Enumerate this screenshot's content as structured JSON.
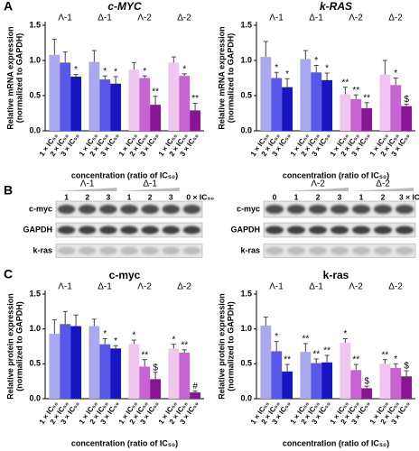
{
  "panel_labels": [
    "A",
    "B",
    "C"
  ],
  "chart_data": [
    {
      "type": "bar",
      "title": "c-MYC",
      "title_italic": true,
      "ylabel": [
        "Relative mRNA expression",
        "(normalized to GAPDH)"
      ],
      "xlabel": "concentration (ratio of IC₅₀)",
      "groups": [
        "Λ-1",
        "Δ-1",
        "Λ-2",
        "Δ-2"
      ],
      "categories": [
        "1 × IC₅₀",
        "2 × IC₅₀",
        "3 × IC₅₀",
        "1 × IC₅₀",
        "2 × IC₅₀",
        "3 × IC₅₀",
        "1 × IC₅₀",
        "2 × IC₅₀",
        "3 × IC₅₀",
        "1 × IC₅₀",
        "2 × IC₅₀",
        "3 × IC₅₀"
      ],
      "values": [
        1.08,
        0.97,
        0.77,
        0.98,
        0.73,
        0.67,
        0.87,
        0.75,
        0.37,
        0.97,
        0.78,
        0.29
      ],
      "errors": [
        0.22,
        0.15,
        0.03,
        0.16,
        0.05,
        0.1,
        0.1,
        0.03,
        0.12,
        0.08,
        0.03,
        0.1
      ],
      "annotations": [
        null,
        null,
        "*",
        null,
        "*",
        "*",
        null,
        "*",
        "**",
        null,
        "*",
        "**"
      ],
      "colors": [
        "#a9a9ef",
        "#5858e8",
        "#1515c4",
        "#a9a9ef",
        "#5858e8",
        "#1515c4",
        "#f0c6f0",
        "#c863d4",
        "#8a1496",
        "#f0c6f0",
        "#c863d4",
        "#8a1496"
      ],
      "ylim": [
        0,
        1.5
      ],
      "yticks": [
        {
          "value": 0,
          "label": "0.0"
        },
        0.5,
        {
          "value": 1,
          "label": "1.0"
        },
        1.5
      ]
    },
    {
      "type": "bar",
      "title": "k-RAS",
      "title_italic": true,
      "ylabel": [
        "Relative mRNA expression",
        "(normalized to GAPDH)"
      ],
      "xlabel": "concentration (ratio of IC₅₀)",
      "groups": [
        "Λ-1",
        "Δ-1",
        "Λ-2",
        "Δ-2"
      ],
      "categories": [
        "1 × IC₅₀",
        "2 × IC₅₀",
        "3 × IC₅₀",
        "1 × IC₅₀",
        "2 × IC₅₀",
        "3 × IC₅₀",
        "1 × IC₅₀",
        "2 × IC₅₀",
        "3 × IC₅₀",
        "1 × IC₅₀",
        "2 × IC₅₀",
        "3 × IC₅₀"
      ],
      "values": [
        1.05,
        0.75,
        0.62,
        1.02,
        0.83,
        0.72,
        0.52,
        0.45,
        0.32,
        0.8,
        0.65,
        0.35
      ],
      "errors": [
        0.22,
        0.08,
        0.12,
        0.12,
        0.1,
        0.1,
        0.1,
        0.06,
        0.08,
        0.2,
        0.1,
        0.03
      ],
      "annotations": [
        null,
        "*",
        "*",
        null,
        "*",
        "*",
        "**",
        "**",
        "**",
        null,
        "*",
        "$"
      ],
      "colors": [
        "#a9a9ef",
        "#5858e8",
        "#1515c4",
        "#a9a9ef",
        "#5858e8",
        "#1515c4",
        "#f0c6f0",
        "#c863d4",
        "#8a1496",
        "#f0c6f0",
        "#c863d4",
        "#8a1496"
      ],
      "ylim": [
        0,
        1.5
      ],
      "yticks": [
        {
          "value": 0,
          "label": "0.0"
        },
        0.5,
        {
          "value": 1,
          "label": "1.0"
        },
        1.5
      ]
    },
    {
      "type": "bar",
      "title": "c-myc",
      "title_italic": false,
      "ylabel": [
        "Relative protein expression",
        "(normalized to GAPDH)"
      ],
      "xlabel": "concentration (ratio of IC₅₀)",
      "groups": [
        "Λ-1",
        "Δ-1",
        "Λ-2",
        "Δ-2"
      ],
      "categories": [
        "1 × IC₅₀",
        "2 × IC₅₀",
        "3 × IC₅₀",
        "1 × IC₅₀",
        "2 × IC₅₀",
        "3 × IC₅₀",
        "1 × IC₅₀",
        "2 × IC₅₀",
        "3 × IC₅₀",
        "1 × IC₅₀",
        "2 × IC₅₀",
        "3 × IC₅₀"
      ],
      "values": [
        0.93,
        1.07,
        1.04,
        1.04,
        0.78,
        0.72,
        0.78,
        0.46,
        0.28,
        0.72,
        0.66,
        0.09
      ],
      "errors": [
        0.2,
        0.18,
        0.16,
        0.1,
        0.08,
        0.04,
        0.06,
        0.1,
        0.1,
        0.06,
        0.04,
        0.02
      ],
      "annotations": [
        null,
        null,
        null,
        null,
        "*",
        "*",
        "*",
        "**",
        "$",
        "*",
        "**",
        "#"
      ],
      "colors": [
        "#a9a9ef",
        "#5858e8",
        "#1515c4",
        "#a9a9ef",
        "#5858e8",
        "#1515c4",
        "#f0c6f0",
        "#c863d4",
        "#8a1496",
        "#f0c6f0",
        "#c863d4",
        "#8a1496"
      ],
      "ylim": [
        0,
        1.5
      ],
      "yticks": [
        {
          "value": 0,
          "label": "0.0"
        },
        0.5,
        {
          "value": 1,
          "label": "1.0"
        },
        1.5
      ]
    },
    {
      "type": "bar",
      "title": "k-ras",
      "title_italic": false,
      "ylabel": [
        "Relative protein expression",
        "(normalized to GAPDH)"
      ],
      "xlabel": "concentration (ratio of IC₅₀)",
      "groups": [
        "Λ-1",
        "Δ-1",
        "Λ-2",
        "Δ-2"
      ],
      "categories": [
        "1 × IC₅₀",
        "2 × IC₅₀",
        "3 × IC₅₀",
        "1 × IC₅₀",
        "2 × IC₅₀",
        "3 × IC₅₀",
        "1 × IC₅₀",
        "2 × IC₅₀",
        "3 × IC₅₀",
        "1 × IC₅₀",
        "2 × IC₅₀",
        "3 × IC₅₀"
      ],
      "values": [
        1.05,
        0.68,
        0.39,
        0.67,
        0.51,
        0.52,
        0.8,
        0.41,
        0.15,
        0.5,
        0.44,
        0.32
      ],
      "errors": [
        0.12,
        0.14,
        0.1,
        0.12,
        0.06,
        0.1,
        0.06,
        0.08,
        0.03,
        0.06,
        0.06,
        0.08
      ],
      "annotations": [
        null,
        "*",
        "**",
        "**",
        "**",
        "**",
        "*",
        "**",
        "$",
        "**",
        "*",
        "$"
      ],
      "colors": [
        "#a9a9ef",
        "#5858e8",
        "#1515c4",
        "#a9a9ef",
        "#5858e8",
        "#1515c4",
        "#f0c6f0",
        "#c863d4",
        "#8a1496",
        "#f0c6f0",
        "#c863d4",
        "#8a1496"
      ],
      "ylim": [
        0,
        1.5
      ],
      "yticks": [
        {
          "value": 0,
          "label": "0.0"
        },
        0.5,
        {
          "value": 1,
          "label": "1.0"
        },
        1.5
      ]
    }
  ],
  "blots": [
    {
      "groups": [
        "Λ-1",
        "Δ-1"
      ],
      "lanes": [
        "1",
        "2",
        "3",
        "1",
        "2",
        "3",
        "0 × IC₅₀"
      ],
      "rows": [
        "c-myc",
        "GAPDH",
        "k-ras"
      ]
    },
    {
      "groups": [
        "Λ-2",
        "Δ-2"
      ],
      "lanes": [
        "0",
        "1",
        "2",
        "3",
        "1",
        "2",
        "3 × IC₅₀"
      ],
      "rows": [
        "c-myc",
        "GAPDH",
        "k-ras"
      ]
    }
  ]
}
